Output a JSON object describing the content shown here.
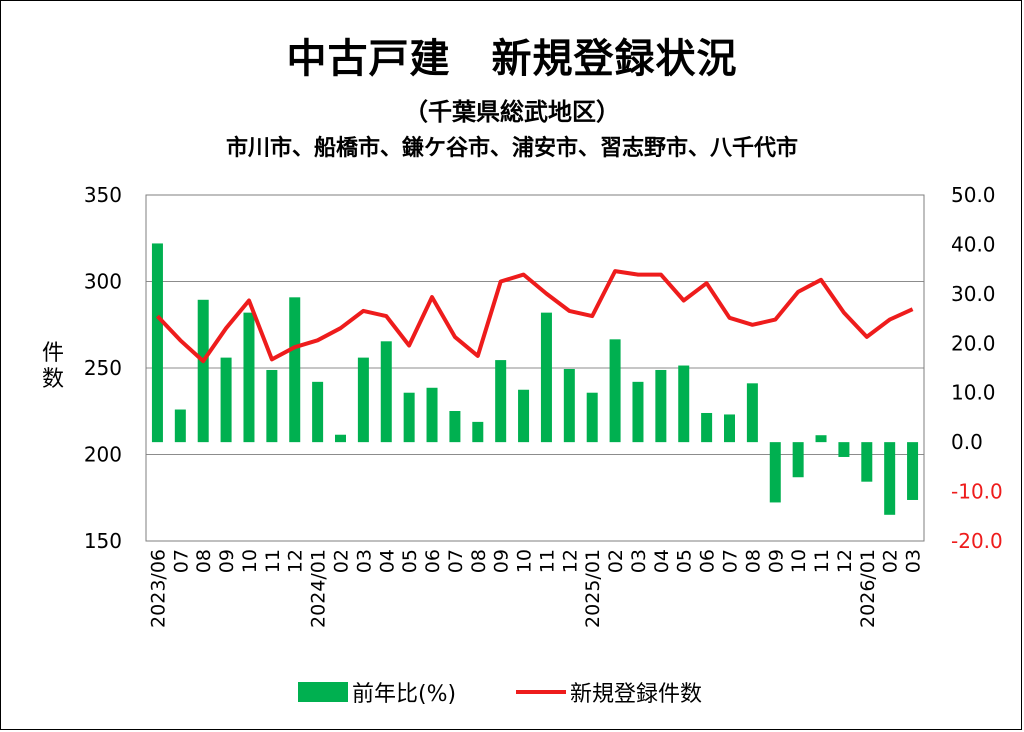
{
  "chart_data": {
    "type": "bar",
    "title": "中古戸建　新規登録状況",
    "subtitle": "（千葉県総武地区）",
    "subtitle2": "市川市、船橋市、鎌ケ谷市、浦安市、習志野市、八千代市",
    "ylabel": "件数",
    "ylim": [
      150,
      350
    ],
    "y2lim": [
      -20,
      50
    ],
    "yticks": [
      "350",
      "300",
      "250",
      "200",
      "150"
    ],
    "y2ticks": [
      "50.0",
      "40.0",
      "30.0",
      "20.0",
      "10.0",
      "0.0",
      "-10.0",
      "-20.0"
    ],
    "grid": true,
    "legend_position": "bottom",
    "colors": {
      "bar": "#00B050",
      "line": "#EE1C1C",
      "negative_axis": "#EE1C1C"
    },
    "categories": [
      "2023/06",
      "07",
      "08",
      "09",
      "10",
      "11",
      "12",
      "2024/01",
      "02",
      "03",
      "04",
      "05",
      "06",
      "07",
      "08",
      "09",
      "10",
      "11",
      "12",
      "2025/01",
      "02",
      "03",
      "04",
      "05",
      "06",
      "07",
      "08",
      "09",
      "10",
      "11",
      "12",
      "2026/01",
      "02",
      "03"
    ],
    "series": [
      {
        "name": "前年比(%)",
        "type": "bar",
        "axis": "right",
        "values": [
          40.2,
          6.6,
          28.8,
          17.1,
          26.2,
          14.6,
          29.3,
          12.2,
          1.5,
          17.1,
          20.4,
          10.0,
          11.0,
          6.3,
          4.1,
          16.6,
          10.6,
          26.2,
          14.8,
          10.0,
          20.8,
          12.2,
          14.6,
          15.5,
          5.9,
          5.6,
          11.9,
          -12.2,
          -7.1,
          1.4,
          -3.0,
          -8.0,
          -14.7,
          -11.7
        ]
      },
      {
        "name": "新規登録件数",
        "type": "line",
        "axis": "left",
        "values": [
          280,
          266,
          254,
          273,
          289,
          255,
          262,
          266,
          273,
          283,
          280,
          263,
          291,
          268,
          257,
          300,
          304,
          293,
          283,
          280,
          306,
          304,
          304,
          289,
          299,
          279,
          275,
          278,
          294,
          301,
          282,
          268,
          278,
          284
        ]
      }
    ]
  }
}
